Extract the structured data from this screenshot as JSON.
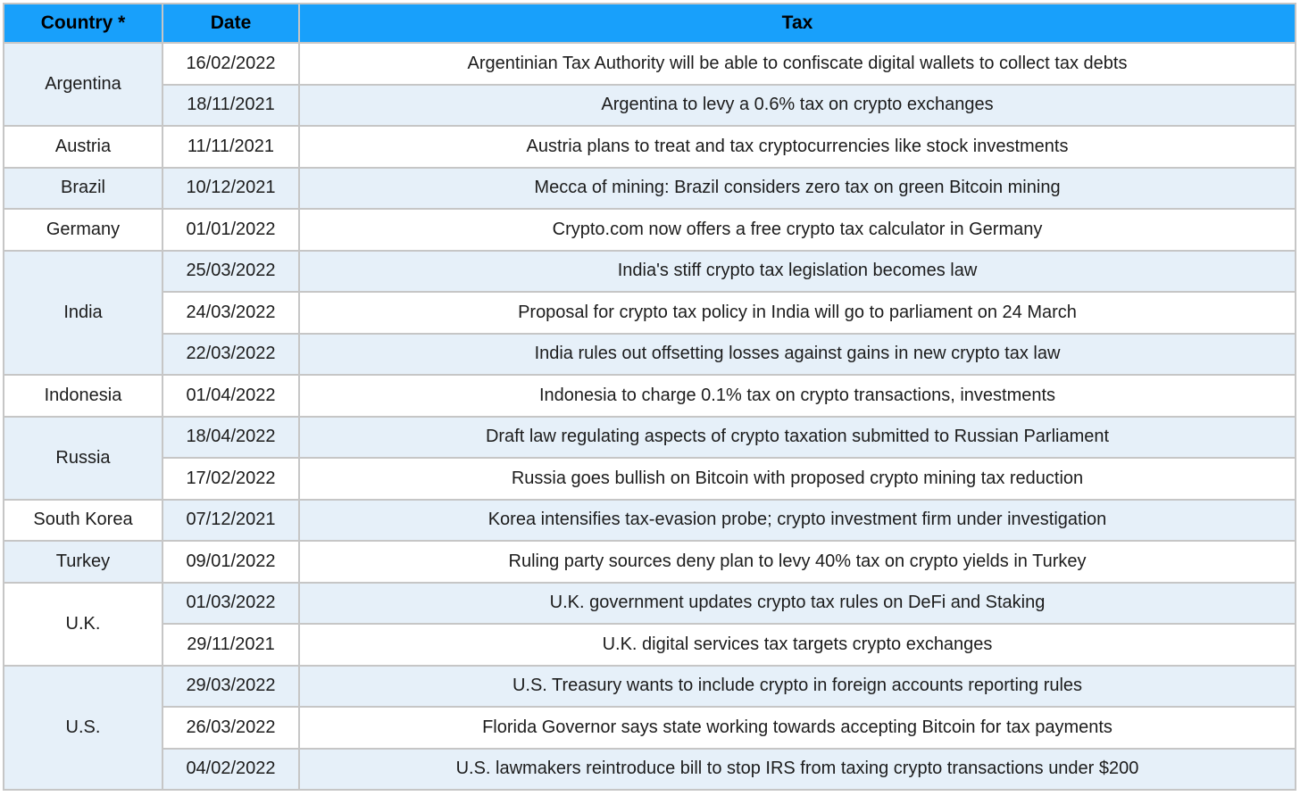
{
  "colors": {
    "header_bg": "#18A0FB",
    "row_alt_bg": "#E6F0F9",
    "border": "#C6C6C6",
    "header_text": "#000000",
    "body_text": "#1C1C1C"
  },
  "table": {
    "columns": [
      {
        "key": "country",
        "label": "Country *"
      },
      {
        "key": "date",
        "label": "Date"
      },
      {
        "key": "tax",
        "label": "Tax"
      }
    ],
    "groups": [
      {
        "country": "Argentina",
        "entries": [
          {
            "date": "16/02/2022",
            "tax": "Argentinian Tax Authority will be able to confiscate digital wallets to collect tax debts"
          },
          {
            "date": "18/11/2021",
            "tax": "Argentina to levy a 0.6% tax on crypto exchanges"
          }
        ]
      },
      {
        "country": "Austria",
        "entries": [
          {
            "date": "11/11/2021",
            "tax": "Austria plans to treat and tax cryptocurrencies like stock investments"
          }
        ]
      },
      {
        "country": "Brazil",
        "entries": [
          {
            "date": "10/12/2021",
            "tax": "Mecca of mining: Brazil considers zero tax on green Bitcoin mining"
          }
        ]
      },
      {
        "country": "Germany",
        "entries": [
          {
            "date": "01/01/2022",
            "tax": "Crypto.com now offers a free crypto tax calculator in Germany"
          }
        ]
      },
      {
        "country": "India",
        "entries": [
          {
            "date": "25/03/2022",
            "tax": "India's stiff crypto tax legislation becomes law"
          },
          {
            "date": "24/03/2022",
            "tax": "Proposal for crypto tax policy in India will go to parliament on 24 March"
          },
          {
            "date": "22/03/2022",
            "tax": "India rules out offsetting losses against gains in new crypto tax law"
          }
        ]
      },
      {
        "country": "Indonesia",
        "entries": [
          {
            "date": "01/04/2022",
            "tax": "Indonesia to charge 0.1% tax on crypto transactions, investments"
          }
        ]
      },
      {
        "country": "Russia",
        "entries": [
          {
            "date": "18/04/2022",
            "tax": "Draft law regulating aspects of crypto taxation submitted to Russian Parliament"
          },
          {
            "date": "17/02/2022",
            "tax": "Russia goes bullish on Bitcoin with proposed crypto mining tax reduction"
          }
        ]
      },
      {
        "country": "South Korea",
        "entries": [
          {
            "date": "07/12/2021",
            "tax": "Korea intensifies tax-evasion probe; crypto investment firm under investigation"
          }
        ]
      },
      {
        "country": "Turkey",
        "entries": [
          {
            "date": "09/01/2022",
            "tax": "Ruling party sources deny plan to levy 40% tax on crypto yields in Turkey"
          }
        ]
      },
      {
        "country": "U.K.",
        "entries": [
          {
            "date": "01/03/2022",
            "tax": "U.K. government updates crypto tax rules on DeFi and Staking"
          },
          {
            "date": "29/11/2021",
            "tax": "U.K. digital services tax targets crypto exchanges"
          }
        ]
      },
      {
        "country": "U.S.",
        "entries": [
          {
            "date": "29/03/2022",
            "tax": "U.S. Treasury wants to include crypto in foreign accounts reporting rules"
          },
          {
            "date": "26/03/2022",
            "tax": "Florida Governor says state working towards accepting Bitcoin for tax payments"
          },
          {
            "date": "04/02/2022",
            "tax": "U.S. lawmakers reintroduce bill to stop IRS from taxing crypto transactions under $200"
          }
        ]
      }
    ]
  }
}
